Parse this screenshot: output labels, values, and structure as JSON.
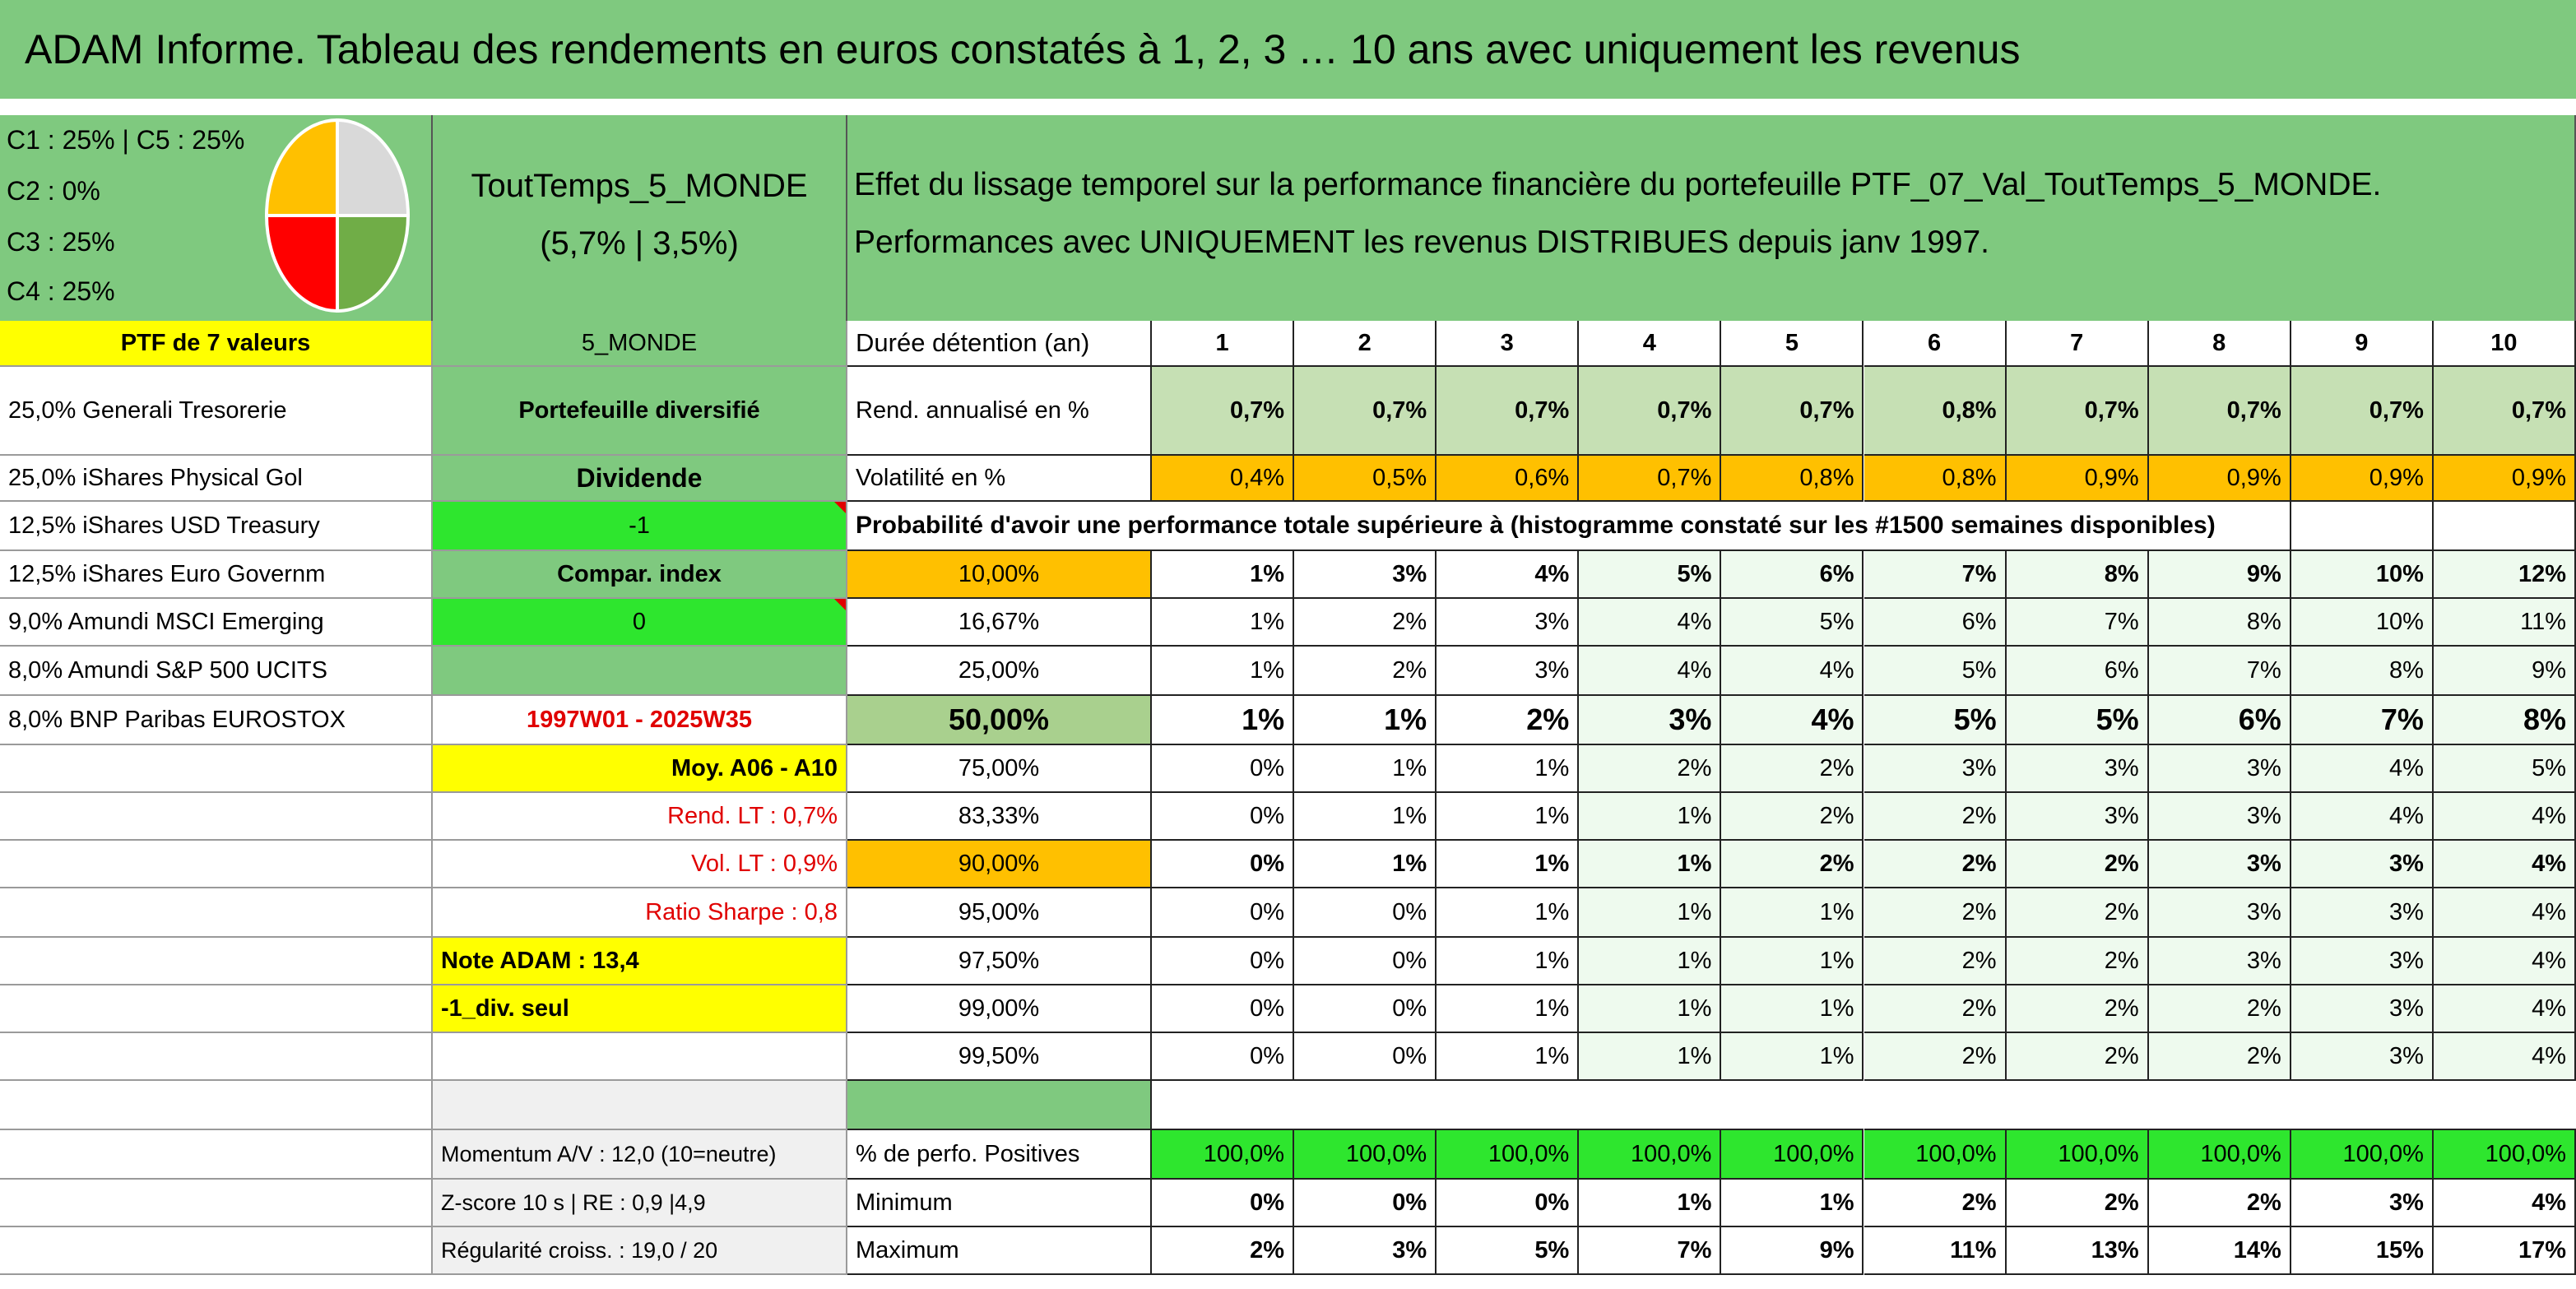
{
  "header": {
    "title": "ADAM Informe. Tableau des rendements en euros constatés à 1, 2, 3 … 10 ans avec uniquement les revenus"
  },
  "allocation_legend": [
    "C1 : 25% | C5 : 25%",
    "C2 : 0%",
    "C3 : 25%",
    "C4 : 25%"
  ],
  "portfolio": {
    "name": "ToutTemps_5_MONDE",
    "stats": "(5,7% | 3,5%)",
    "description": "Effet du lissage temporel sur la performance financière du portefeuille PTF_07_Val_ToutTemps_5_MONDE. Performances avec UNIQUEMENT les revenus DISTRIBUES depuis janv 1997."
  },
  "table": {
    "rows": [
      {
        "holding": "PTF de 7 valeurs",
        "info": "5_MONDE",
        "label": "Durée détention (an)",
        "values": [
          "1",
          "2",
          "3",
          "4",
          "5",
          "6",
          "7",
          "8",
          "9",
          "10"
        ]
      },
      {
        "holding": "25,0% Generali Tresorerie",
        "info": "Portefeuille diversifié",
        "label": "Rend. annualisé en %",
        "values": [
          "0,7%",
          "0,7%",
          "0,7%",
          "0,7%",
          "0,7%",
          "0,8%",
          "0,7%",
          "0,7%",
          "0,7%",
          "0,7%"
        ]
      },
      {
        "holding": "25,0% iShares Physical Gol",
        "info": "Dividende",
        "label": "Volatilité en %",
        "values": [
          "0,4%",
          "0,5%",
          "0,6%",
          "0,7%",
          "0,8%",
          "0,8%",
          "0,9%",
          "0,9%",
          "0,9%",
          "0,9%"
        ]
      },
      {
        "holding": "12,5% iShares USD Treasury",
        "info": "-1",
        "label": "Probabilité d'avoir une performance totale supérieure à (histogramme constaté sur les #1500 semaines disponibles)"
      },
      {
        "holding": "12,5% iShares Euro Governm",
        "info": "Compar. index",
        "label": "10,00%",
        "values": [
          "1%",
          "3%",
          "4%",
          "5%",
          "6%",
          "7%",
          "8%",
          "9%",
          "10%",
          "12%"
        ]
      },
      {
        "holding": "9,0% Amundi MSCI Emerging",
        "info": "0",
        "label": "16,67%",
        "values": [
          "1%",
          "2%",
          "3%",
          "4%",
          "5%",
          "6%",
          "7%",
          "8%",
          "10%",
          "11%"
        ]
      },
      {
        "holding": "8,0% Amundi S&P 500 UCITS",
        "label": "25,00%",
        "values": [
          "1%",
          "2%",
          "3%",
          "4%",
          "4%",
          "5%",
          "6%",
          "7%",
          "8%",
          "9%"
        ]
      },
      {
        "holding": "8,0% BNP Paribas EUROSTOX",
        "info": "1997W01 - 2025W35",
        "label": "50,00%",
        "values": [
          "1%",
          "1%",
          "2%",
          "3%",
          "4%",
          "5%",
          "5%",
          "6%",
          "7%",
          "8%"
        ]
      },
      {
        "info": "Moy. A06 - A10",
        "label": "75,00%",
        "values": [
          "0%",
          "1%",
          "1%",
          "2%",
          "2%",
          "3%",
          "3%",
          "3%",
          "4%",
          "5%"
        ]
      },
      {
        "info": "Rend. LT : 0,7%",
        "label": "83,33%",
        "values": [
          "0%",
          "1%",
          "1%",
          "1%",
          "2%",
          "2%",
          "3%",
          "3%",
          "4%",
          "4%"
        ]
      },
      {
        "info": "Vol. LT : 0,9%",
        "label": "90,00%",
        "values": [
          "0%",
          "1%",
          "1%",
          "1%",
          "2%",
          "2%",
          "2%",
          "3%",
          "3%",
          "4%"
        ]
      },
      {
        "info": "Ratio Sharpe : 0,8",
        "label": "95,00%",
        "values": [
          "0%",
          "0%",
          "1%",
          "1%",
          "1%",
          "2%",
          "2%",
          "3%",
          "3%",
          "4%"
        ]
      },
      {
        "info": "Note ADAM : 13,4",
        "label": "97,50%",
        "values": [
          "0%",
          "0%",
          "1%",
          "1%",
          "1%",
          "2%",
          "2%",
          "3%",
          "3%",
          "4%"
        ]
      },
      {
        "info": "-1_div. seul",
        "label": "99,00%",
        "values": [
          "0%",
          "0%",
          "1%",
          "1%",
          "1%",
          "2%",
          "2%",
          "2%",
          "3%",
          "4%"
        ]
      },
      {
        "label": "99,50%",
        "values": [
          "0%",
          "0%",
          "1%",
          "1%",
          "1%",
          "2%",
          "2%",
          "2%",
          "3%",
          "4%"
        ]
      },
      {},
      {
        "info": "Momentum A/V : 12,0 (10=neutre)",
        "label": "% de perfo. Positives",
        "values": [
          "100,0%",
          "100,0%",
          "100,0%",
          "100,0%",
          "100,0%",
          "100,0%",
          "100,0%",
          "100,0%",
          "100,0%",
          "100,0%"
        ]
      },
      {
        "info": "Z-score 10 s | RE : 0,9 |4,9",
        "label": "Minimum",
        "values": [
          "0%",
          "0%",
          "0%",
          "1%",
          "1%",
          "2%",
          "2%",
          "2%",
          "3%",
          "4%"
        ]
      },
      {
        "info": "Régularité croiss. : 19,0 / 20",
        "label": "Maximum",
        "values": [
          "2%",
          "3%",
          "5%",
          "7%",
          "9%",
          "11%",
          "13%",
          "14%",
          "15%",
          "17%"
        ]
      }
    ]
  }
}
